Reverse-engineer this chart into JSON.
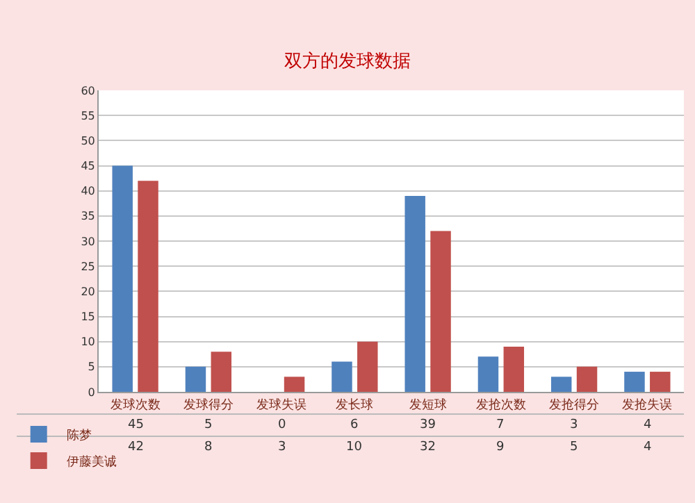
{
  "chart_data": {
    "type": "bar",
    "title": "双方的发球数据",
    "categories": [
      "发球次数",
      "发球得分",
      "发球失误",
      "发长球",
      "发短球",
      "发抢次数",
      "发抢得分",
      "发抢失误"
    ],
    "series": [
      {
        "name": "陈梦",
        "color": "#4f81bd",
        "values": [
          45,
          5,
          0,
          6,
          39,
          7,
          3,
          4
        ]
      },
      {
        "name": "伊藤美诚",
        "color": "#c0504d",
        "values": [
          42,
          8,
          3,
          10,
          32,
          9,
          5,
          4
        ]
      }
    ],
    "ylim": [
      0,
      60
    ],
    "yticks": [
      0,
      5,
      10,
      15,
      20,
      25,
      30,
      35,
      40,
      45,
      50,
      55,
      60
    ],
    "grid": "y",
    "legend": "bottom left",
    "data_labels": true
  }
}
